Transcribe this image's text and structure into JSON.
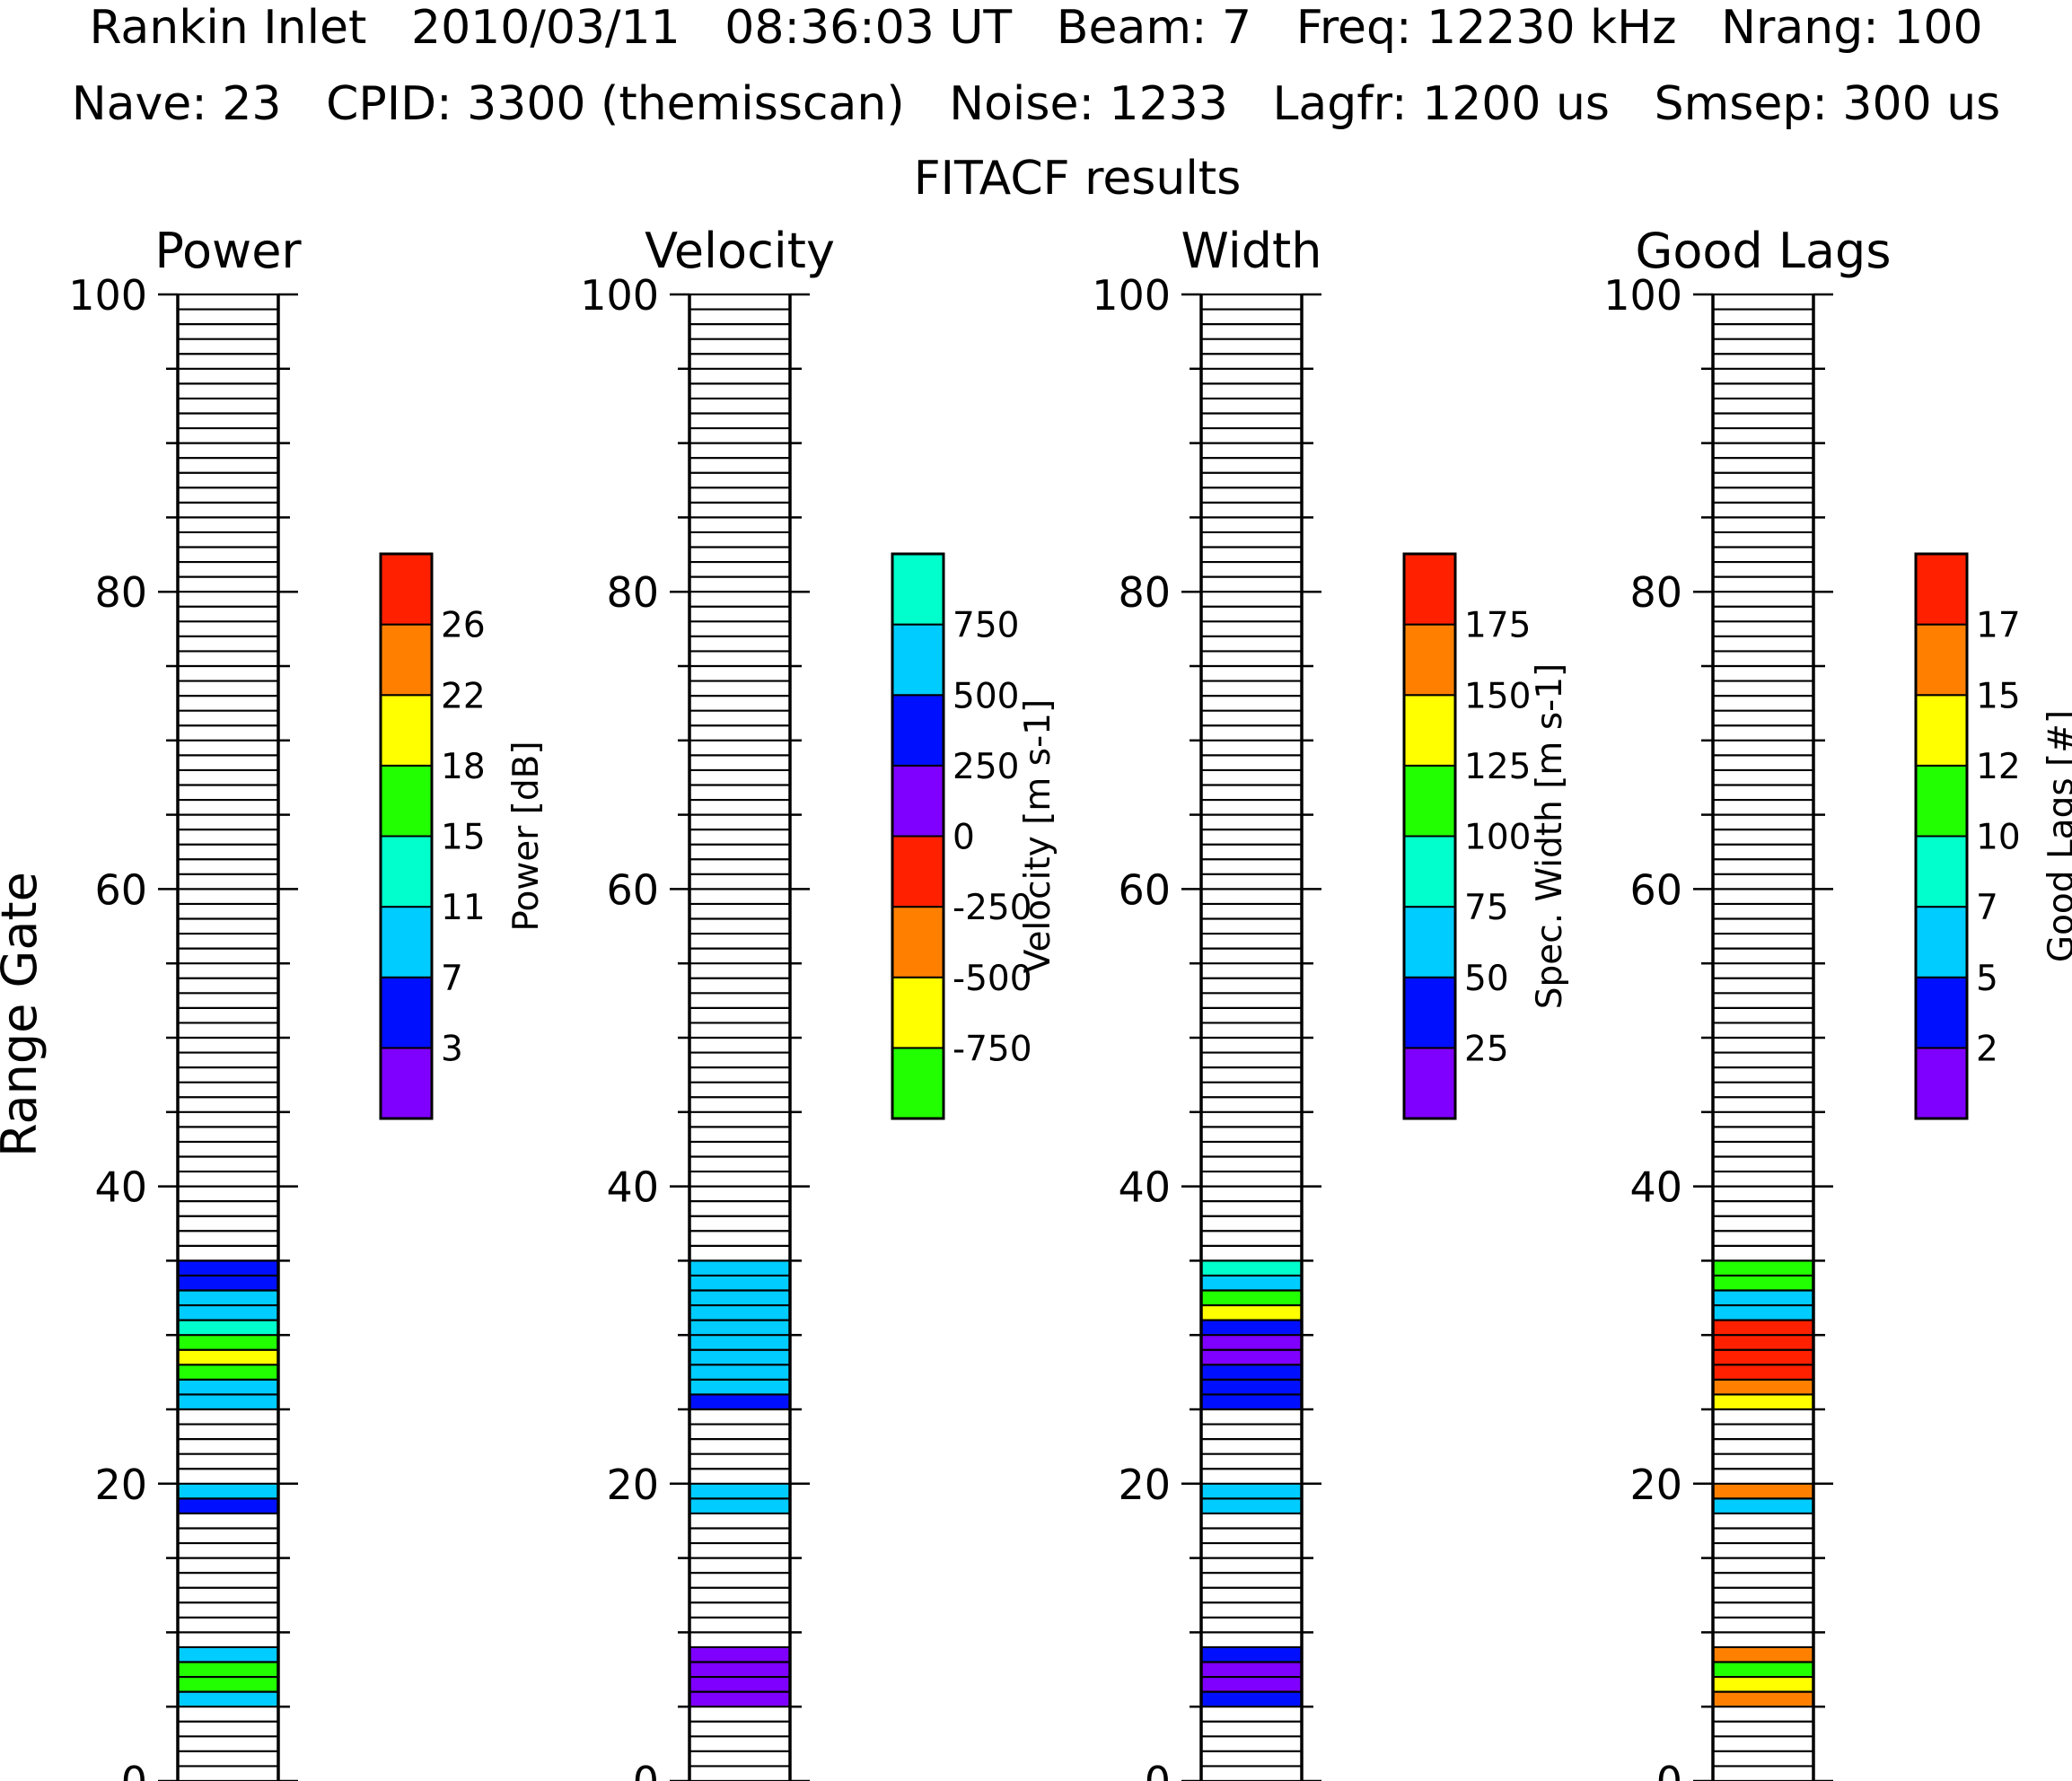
{
  "header": {
    "line1": "Rankin Inlet   2010/03/11   08:36:03 UT   Beam: 7   Freq: 12230 kHz   Nrang: 100",
    "line2": "Nave: 23   CPID: 3300 (themisscan)   Noise: 1233   Lagfr: 1200 us   Smsep: 300 us",
    "line3": "FITACF results"
  },
  "colors": {
    "c0": "#7f00ff",
    "c1": "#0010ff",
    "c2": "#00ccff",
    "c3": "#00ffcc",
    "c4": "#22ff00",
    "c5": "#ffff00",
    "c6": "#ff8000",
    "c7": "#ff2000",
    "v0": "#22ff00",
    "v1": "#ffff00",
    "v2": "#ff8000",
    "v3": "#ff2000",
    "v4": "#7f00ff",
    "v5": "#0010ff",
    "v6": "#00ccff",
    "v7": "#00ffcc"
  },
  "chart_data": [
    {
      "type": "heatmap",
      "title": "Power",
      "ylabel": "Range Gate",
      "ylim": [
        0,
        100
      ],
      "yticks": [
        "0",
        "20",
        "40",
        "60",
        "80",
        "100"
      ],
      "colorbar": {
        "label": "Power [dB]",
        "colors": [
          "#7f00ff",
          "#0010ff",
          "#00ccff",
          "#00ffcc",
          "#22ff00",
          "#ffff00",
          "#ff8000",
          "#ff2000"
        ],
        "tick_labels": [
          "3",
          "7",
          "11",
          "15",
          "18",
          "22",
          "26"
        ]
      },
      "gates": [
        {
          "gate": 5,
          "bin": 2
        },
        {
          "gate": 6,
          "bin": 4
        },
        {
          "gate": 7,
          "bin": 4
        },
        {
          "gate": 8,
          "bin": 2
        },
        {
          "gate": 18,
          "bin": 1
        },
        {
          "gate": 19,
          "bin": 2
        },
        {
          "gate": 25,
          "bin": 2
        },
        {
          "gate": 26,
          "bin": 2
        },
        {
          "gate": 27,
          "bin": 4
        },
        {
          "gate": 28,
          "bin": 5
        },
        {
          "gate": 29,
          "bin": 4
        },
        {
          "gate": 30,
          "bin": 3
        },
        {
          "gate": 31,
          "bin": 2
        },
        {
          "gate": 32,
          "bin": 2
        },
        {
          "gate": 33,
          "bin": 1
        },
        {
          "gate": 34,
          "bin": 1
        }
      ]
    },
    {
      "type": "heatmap",
      "title": "Velocity",
      "ylim": [
        0,
        100
      ],
      "yticks": [
        "0",
        "20",
        "40",
        "60",
        "80",
        "100"
      ],
      "colorbar": {
        "label": "Velocity [m s-1]",
        "colors": [
          "#22ff00",
          "#ffff00",
          "#ff8000",
          "#ff2000",
          "#7f00ff",
          "#0010ff",
          "#00ccff",
          "#00ffcc"
        ],
        "tick_labels": [
          "-750",
          "-500",
          "-250",
          "0",
          "250",
          "500",
          "750"
        ]
      },
      "gates": [
        {
          "gate": 5,
          "bin": 4
        },
        {
          "gate": 6,
          "bin": 4
        },
        {
          "gate": 7,
          "bin": 4
        },
        {
          "gate": 8,
          "bin": 4
        },
        {
          "gate": 18,
          "bin": 6
        },
        {
          "gate": 19,
          "bin": 6
        },
        {
          "gate": 25,
          "bin": 5
        },
        {
          "gate": 26,
          "bin": 6
        },
        {
          "gate": 27,
          "bin": 6
        },
        {
          "gate": 28,
          "bin": 6
        },
        {
          "gate": 29,
          "bin": 6
        },
        {
          "gate": 30,
          "bin": 6
        },
        {
          "gate": 31,
          "bin": 6
        },
        {
          "gate": 32,
          "bin": 6
        },
        {
          "gate": 33,
          "bin": 6
        },
        {
          "gate": 34,
          "bin": 6
        }
      ]
    },
    {
      "type": "heatmap",
      "title": "Width",
      "ylim": [
        0,
        100
      ],
      "yticks": [
        "0",
        "20",
        "40",
        "60",
        "80",
        "100"
      ],
      "colorbar": {
        "label": "Spec. Width [m s-1]",
        "colors": [
          "#7f00ff",
          "#0010ff",
          "#00ccff",
          "#00ffcc",
          "#22ff00",
          "#ffff00",
          "#ff8000",
          "#ff2000"
        ],
        "tick_labels": [
          "25",
          "50",
          "75",
          "100",
          "125",
          "150",
          "175"
        ]
      },
      "gates": [
        {
          "gate": 5,
          "bin": 1
        },
        {
          "gate": 6,
          "bin": 0
        },
        {
          "gate": 7,
          "bin": 0
        },
        {
          "gate": 8,
          "bin": 1
        },
        {
          "gate": 18,
          "bin": 2
        },
        {
          "gate": 19,
          "bin": 2
        },
        {
          "gate": 25,
          "bin": 1
        },
        {
          "gate": 26,
          "bin": 1
        },
        {
          "gate": 27,
          "bin": 1
        },
        {
          "gate": 28,
          "bin": 0
        },
        {
          "gate": 29,
          "bin": 0
        },
        {
          "gate": 30,
          "bin": 1
        },
        {
          "gate": 31,
          "bin": 5
        },
        {
          "gate": 32,
          "bin": 4
        },
        {
          "gate": 33,
          "bin": 2
        },
        {
          "gate": 34,
          "bin": 3
        }
      ]
    },
    {
      "type": "heatmap",
      "title": "Good Lags",
      "ylim": [
        0,
        100
      ],
      "yticks": [
        "0",
        "20",
        "40",
        "60",
        "80",
        "100"
      ],
      "colorbar": {
        "label": "Good Lags [#]",
        "colors": [
          "#7f00ff",
          "#0010ff",
          "#00ccff",
          "#00ffcc",
          "#22ff00",
          "#ffff00",
          "#ff8000",
          "#ff2000"
        ],
        "tick_labels": [
          "2",
          "5",
          "7",
          "10",
          "12",
          "15",
          "17"
        ]
      },
      "gates": [
        {
          "gate": 5,
          "bin": 6
        },
        {
          "gate": 6,
          "bin": 5
        },
        {
          "gate": 7,
          "bin": 4
        },
        {
          "gate": 8,
          "bin": 6
        },
        {
          "gate": 18,
          "bin": 2
        },
        {
          "gate": 19,
          "bin": 6
        },
        {
          "gate": 25,
          "bin": 5
        },
        {
          "gate": 26,
          "bin": 6
        },
        {
          "gate": 27,
          "bin": 7
        },
        {
          "gate": 28,
          "bin": 7
        },
        {
          "gate": 29,
          "bin": 7
        },
        {
          "gate": 30,
          "bin": 7
        },
        {
          "gate": 31,
          "bin": 2
        },
        {
          "gate": 32,
          "bin": 2
        },
        {
          "gate": 33,
          "bin": 4
        },
        {
          "gate": 34,
          "bin": 4
        }
      ]
    }
  ]
}
